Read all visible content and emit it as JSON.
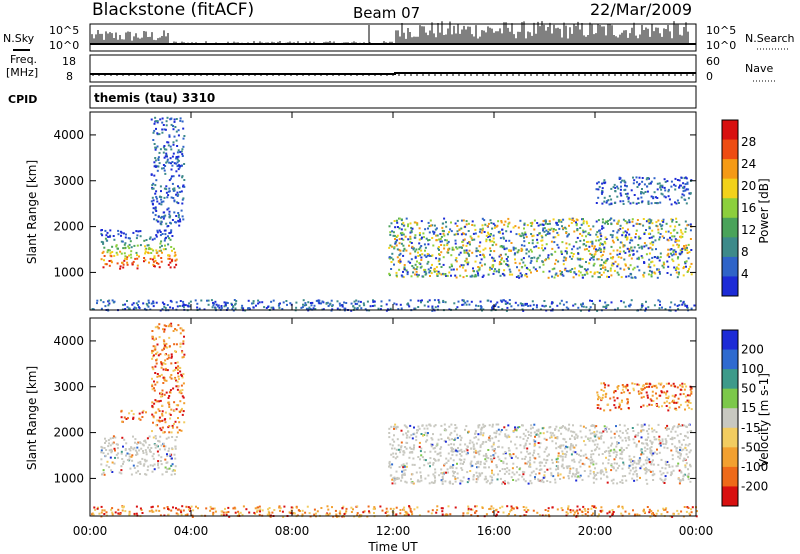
{
  "header": {
    "title": "Blackstone (fitACF)",
    "beam": "Beam 07",
    "date": "22/Mar/2009"
  },
  "top_panels": {
    "nsky_label": "N.Sky",
    "nsearch_label": "N.Search",
    "freq_label_1": "Freq.",
    "freq_label_2": "[MHz]",
    "nave_label": "Nave",
    "cpid_label": "CPID",
    "cpid_value": "themis (tau) 3310",
    "noise_left_ticks": [
      "10^5",
      "10^0"
    ],
    "noise_right_ticks": [
      "10^5",
      "10^0"
    ],
    "freq_left_ticks": [
      "18",
      "8"
    ],
    "nave_right_ticks": [
      "60",
      "0"
    ]
  },
  "chart_data": [
    {
      "type": "heatmap",
      "panel": "power",
      "xlabel": "",
      "ylabel": "Slant Range [km]",
      "xlim": [
        "00:00",
        "00:00"
      ],
      "ylim": [
        180,
        4500
      ],
      "yticks": [
        "1000",
        "2000",
        "3000",
        "4000"
      ],
      "colorbar": {
        "label": "Power [dB]",
        "ticks": [
          "4",
          "8",
          "12",
          "16",
          "20",
          "24",
          "28"
        ],
        "range": [
          0,
          30
        ],
        "colors": [
          "#1c2bd6",
          "#2f64c8",
          "#3d8a8a",
          "#4aa35a",
          "#8ccf3c",
          "#f2d21a",
          "#f59a15",
          "#ee4c12",
          "#d81010"
        ]
      },
      "regions": [
        {
          "t_start": 0.4,
          "t_end": 3.4,
          "r_low": 1100,
          "r_high": 1950,
          "level": "strong"
        },
        {
          "t_start": 2.4,
          "t_end": 3.7,
          "r_low": 2000,
          "r_high": 4400,
          "level": "weak"
        },
        {
          "t_start": 11.8,
          "t_end": 23.8,
          "r_low": 900,
          "r_high": 2200,
          "level": "medium"
        },
        {
          "t_start": 20.0,
          "t_end": 23.8,
          "r_low": 2500,
          "r_high": 3100,
          "level": "weak"
        },
        {
          "t_start": 0.0,
          "t_end": 24.0,
          "r_low": 180,
          "r_high": 420,
          "level": "weak"
        }
      ]
    },
    {
      "type": "heatmap",
      "panel": "velocity",
      "xlabel": "Time UT",
      "ylabel": "Slant Range [km]",
      "xticks": [
        "00:00",
        "04:00",
        "08:00",
        "12:00",
        "16:00",
        "20:00",
        "00:00"
      ],
      "ylim": [
        180,
        4500
      ],
      "yticks": [
        "1000",
        "2000",
        "3000",
        "4000"
      ],
      "colorbar": {
        "label": "Velocity [m s-1]",
        "ticks": [
          "200",
          "100",
          "50",
          "15",
          "-15",
          "-50",
          "-100",
          "-200"
        ],
        "range": [
          -250,
          250
        ],
        "colors": [
          "#1c2bd6",
          "#2f6bd0",
          "#3d9a8a",
          "#7cc84a",
          "#c8c8c0",
          "#f2cc60",
          "#f2a030",
          "#ee6a1a",
          "#d81010"
        ]
      },
      "regions": [
        {
          "t_start": 0.4,
          "t_end": 3.4,
          "r_low": 1100,
          "r_high": 1950,
          "level": "near-zero"
        },
        {
          "t_start": 1.2,
          "t_end": 2.2,
          "r_low": 2250,
          "r_high": 2500,
          "level": "negative"
        },
        {
          "t_start": 2.4,
          "t_end": 3.7,
          "r_low": 2000,
          "r_high": 4400,
          "level": "negative"
        },
        {
          "t_start": 11.8,
          "t_end": 23.8,
          "r_low": 900,
          "r_high": 2200,
          "level": "near-zero"
        },
        {
          "t_start": 20.0,
          "t_end": 23.8,
          "r_low": 2500,
          "r_high": 3100,
          "level": "negative"
        },
        {
          "t_start": 0.0,
          "t_end": 24.0,
          "r_low": 180,
          "r_high": 420,
          "level": "negative"
        }
      ]
    }
  ]
}
